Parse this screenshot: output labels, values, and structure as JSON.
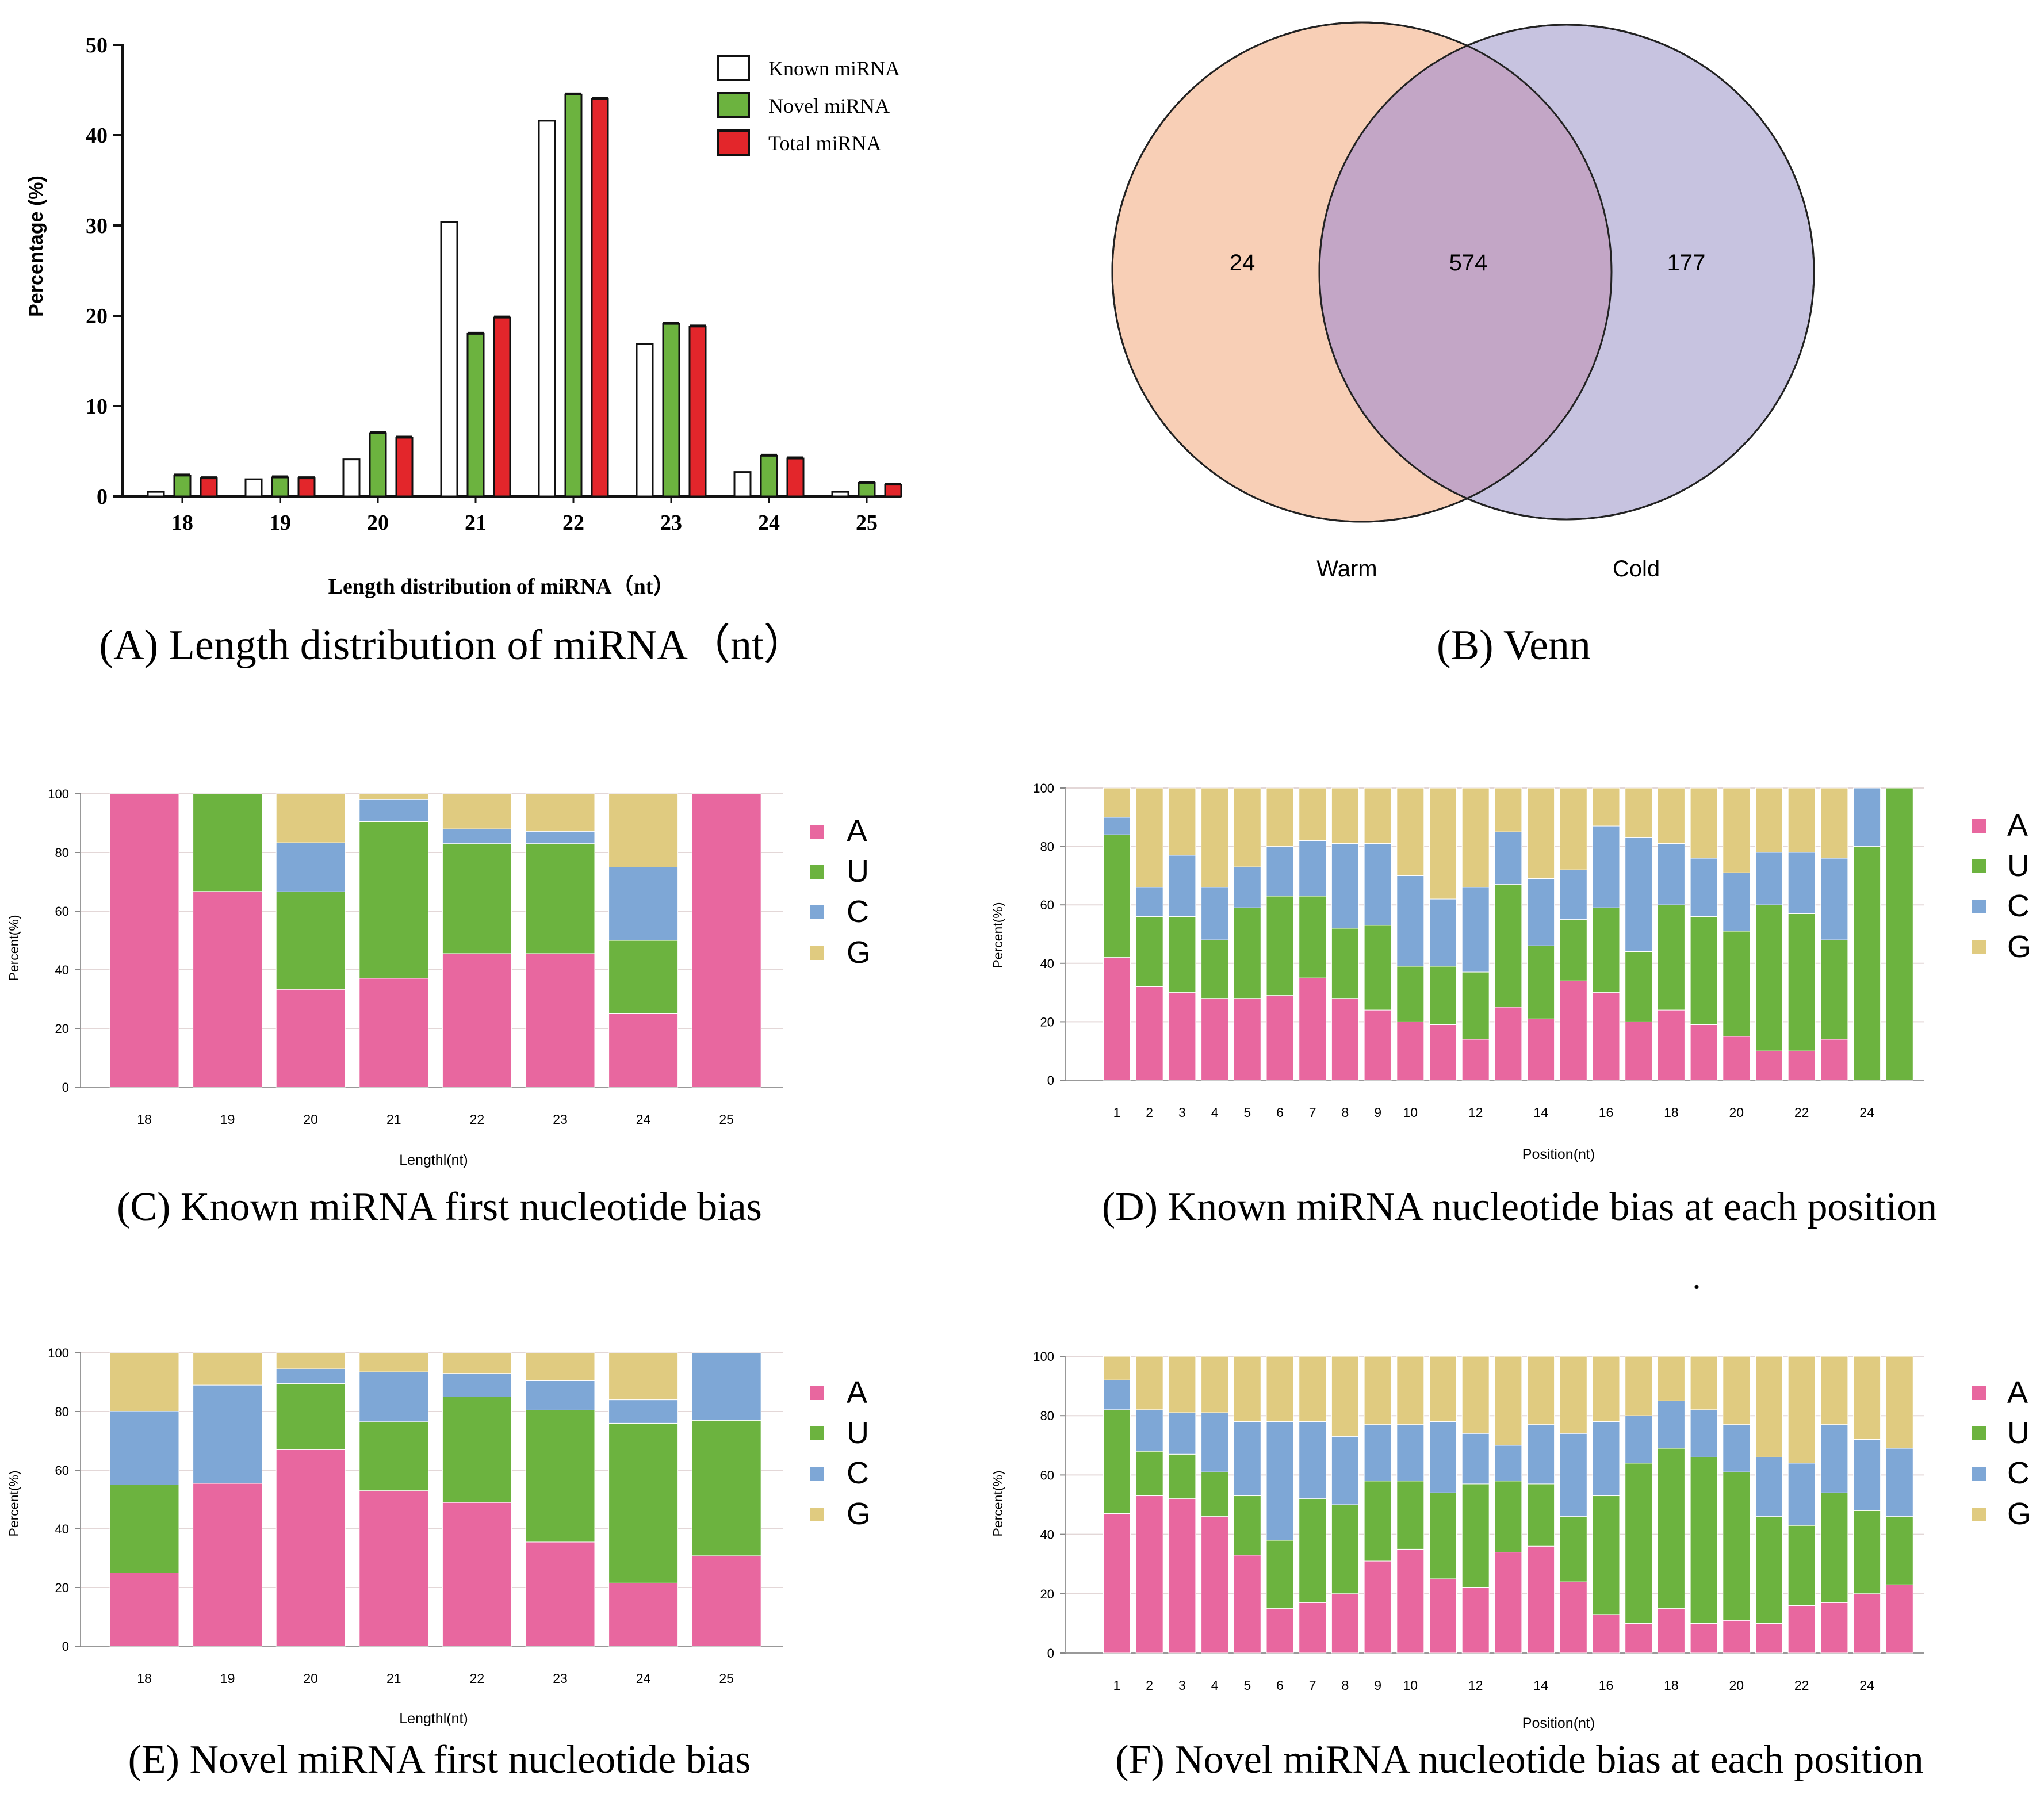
{
  "colors": {
    "A": "#e8679f",
    "U": "#6cb33f",
    "C": "#7ea7d6",
    "G": "#e0cb80",
    "known": "#ffffff",
    "novel": "#6cb33f",
    "total": "#e3262b",
    "warm": "#f8cfb6",
    "cold": "#c7c3e0",
    "overlap": "#c3a6c6"
  },
  "captions": {
    "A": "(A) Length distribution of miRNA（nt）",
    "B": "(B) Venn",
    "C": "(C) Known miRNA first nucleotide bias",
    "D": "(D) Known  miRNA nucleotide bias at each position",
    "E": "(E) Novel miRNA first nucleotide bias",
    "F": "(F) Novel miRNA nucleotide bias at each position"
  },
  "stray_mark": ".",
  "chart_data": [
    {
      "id": "A",
      "type": "bar",
      "title": "",
      "xlabel": "Length distribution of miRNA（nt）",
      "ylabel": "Percentage (%)",
      "ylim": [
        0,
        50
      ],
      "yticks": [
        0,
        10,
        20,
        30,
        40,
        50
      ],
      "legend_position": "top-right",
      "categories": [
        "18",
        "19",
        "20",
        "21",
        "22",
        "23",
        "24",
        "25"
      ],
      "series": [
        {
          "name": "Known miRNA",
          "values": [
            0.5,
            1.9,
            4.1,
            30.4,
            41.6,
            16.9,
            2.7,
            0.5
          ]
        },
        {
          "name": "Novel miRNA",
          "values": [
            2.3,
            2.1,
            7.0,
            18.0,
            44.5,
            19.1,
            4.5,
            1.5
          ]
        },
        {
          "name": "Total miRNA",
          "values": [
            2.0,
            2.0,
            6.5,
            19.8,
            44.0,
            18.8,
            4.2,
            1.3
          ]
        }
      ]
    },
    {
      "id": "B",
      "type": "venn",
      "sets": [
        {
          "name": "Warm",
          "only": "24"
        },
        {
          "name": "Cold",
          "only": "177"
        }
      ],
      "intersection": "574"
    },
    {
      "id": "C",
      "type": "bar",
      "stacked": true,
      "xlabel": "Lengthl(nt)",
      "ylabel": "Percent(%)",
      "ylim": [
        0,
        100
      ],
      "yticks": [
        0,
        20,
        40,
        60,
        80,
        100
      ],
      "legend_position": "right",
      "categories": [
        "18",
        "19",
        "20",
        "21",
        "22",
        "23",
        "24",
        "25"
      ],
      "series": [
        {
          "name": "A",
          "values": [
            100,
            66.7,
            33.3,
            37.1,
            45.5,
            45.5,
            25.0,
            100
          ]
        },
        {
          "name": "U",
          "values": [
            0,
            33.3,
            33.3,
            53.4,
            37.5,
            37.5,
            25.0,
            0
          ]
        },
        {
          "name": "C",
          "values": [
            0,
            0,
            16.7,
            7.5,
            5.0,
            4.2,
            25.0,
            0
          ]
        },
        {
          "name": "G",
          "values": [
            0,
            0,
            16.7,
            2.0,
            12.0,
            12.8,
            25.0,
            0
          ]
        }
      ]
    },
    {
      "id": "D",
      "type": "bar",
      "stacked": true,
      "xlabel": "Position(nt)",
      "ylabel": "Percent(%)",
      "ylim": [
        0,
        100
      ],
      "yticks": [
        0,
        20,
        40,
        60,
        80,
        100
      ],
      "legend_position": "right",
      "categories": [
        "1",
        "2",
        "3",
        "4",
        "5",
        "6",
        "7",
        "8",
        "9",
        "10",
        "11",
        "12",
        "13",
        "14",
        "15",
        "16",
        "17",
        "18",
        "19",
        "20",
        "21",
        "22",
        "23",
        "24",
        "25"
      ],
      "xtick_labels": [
        "1",
        "2",
        "3",
        "4",
        "5",
        "6",
        "7",
        "8",
        "9",
        "10",
        "",
        "12",
        "",
        "14",
        "",
        "16",
        "",
        "18",
        "",
        "20",
        "",
        "22",
        "",
        "24",
        ""
      ],
      "series": [
        {
          "name": "A",
          "values": [
            42,
            32,
            30,
            28,
            28,
            29,
            35,
            28,
            24,
            20,
            19,
            14,
            25,
            21,
            34,
            30,
            20,
            24,
            19,
            15,
            10,
            10,
            14,
            0,
            0
          ]
        },
        {
          "name": "U",
          "values": [
            42,
            24,
            26,
            20,
            31,
            34,
            28,
            24,
            29,
            19,
            20,
            23,
            42,
            25,
            21,
            29,
            24,
            36,
            37,
            36,
            50,
            47,
            34,
            80,
            100
          ]
        },
        {
          "name": "C",
          "values": [
            6,
            10,
            21,
            18,
            14,
            17,
            19,
            29,
            28,
            31,
            23,
            29,
            18,
            23,
            17,
            28,
            39,
            21,
            20,
            20,
            18,
            21,
            28,
            20,
            0
          ]
        },
        {
          "name": "G",
          "values": [
            10,
            34,
            23,
            34,
            27,
            20,
            18,
            19,
            19,
            30,
            38,
            34,
            15,
            31,
            28,
            13,
            17,
            19,
            24,
            29,
            22,
            22,
            24,
            0,
            0
          ]
        }
      ]
    },
    {
      "id": "E",
      "type": "bar",
      "stacked": true,
      "xlabel": "Lengthl(nt)",
      "ylabel": "Percent(%)",
      "ylim": [
        0,
        100
      ],
      "yticks": [
        0,
        20,
        40,
        60,
        80,
        100
      ],
      "legend_position": "right",
      "categories": [
        "18",
        "19",
        "20",
        "21",
        "22",
        "23",
        "24",
        "25"
      ],
      "series": [
        {
          "name": "A",
          "values": [
            25,
            55.5,
            67,
            53,
            49,
            35.5,
            21.5,
            30.8
          ]
        },
        {
          "name": "U",
          "values": [
            30,
            0,
            22.5,
            23.5,
            36,
            45,
            54.5,
            46.2
          ]
        },
        {
          "name": "C",
          "values": [
            25,
            33.5,
            5,
            17,
            8,
            10,
            8,
            23
          ]
        },
        {
          "name": "G",
          "values": [
            20,
            11,
            5.5,
            6.5,
            7,
            9.5,
            16,
            0
          ]
        }
      ]
    },
    {
      "id": "F",
      "type": "bar",
      "stacked": true,
      "xlabel": "Position(nt)",
      "ylabel": "Percent(%)",
      "ylim": [
        0,
        100
      ],
      "yticks": [
        0,
        20,
        40,
        60,
        80,
        100
      ],
      "legend_position": "right",
      "categories": [
        "1",
        "2",
        "3",
        "4",
        "5",
        "6",
        "7",
        "8",
        "9",
        "10",
        "11",
        "12",
        "13",
        "14",
        "15",
        "16",
        "17",
        "18",
        "19",
        "20",
        "21",
        "22",
        "23",
        "24",
        "25"
      ],
      "xtick_labels": [
        "1",
        "2",
        "3",
        "4",
        "5",
        "6",
        "7",
        "8",
        "9",
        "10",
        "",
        "12",
        "",
        "14",
        "",
        "16",
        "",
        "18",
        "",
        "20",
        "",
        "22",
        "",
        "24",
        ""
      ],
      "series": [
        {
          "name": "A",
          "values": [
            47,
            53,
            52,
            46,
            33,
            15,
            17,
            20,
            31,
            35,
            25,
            22,
            34,
            36,
            24,
            13,
            10,
            15,
            10,
            11,
            10,
            16,
            17,
            20,
            23
          ]
        },
        {
          "name": "U",
          "values": [
            35,
            15,
            15,
            15,
            20,
            23,
            35,
            30,
            27,
            23,
            29,
            35,
            24,
            21,
            22,
            40,
            54,
            54,
            56,
            50,
            36,
            27,
            37,
            28,
            23
          ]
        },
        {
          "name": "C",
          "values": [
            10,
            14,
            14,
            20,
            25,
            40,
            26,
            23,
            19,
            19,
            24,
            17,
            12,
            20,
            28,
            25,
            16,
            16,
            16,
            16,
            20,
            21,
            23,
            24,
            23
          ]
        },
        {
          "name": "G",
          "values": [
            8,
            18,
            19,
            19,
            22,
            22,
            22,
            27,
            23,
            23,
            22,
            26,
            30,
            23,
            26,
            22,
            20,
            15,
            18,
            23,
            34,
            36,
            23,
            28,
            31
          ]
        }
      ]
    }
  ]
}
